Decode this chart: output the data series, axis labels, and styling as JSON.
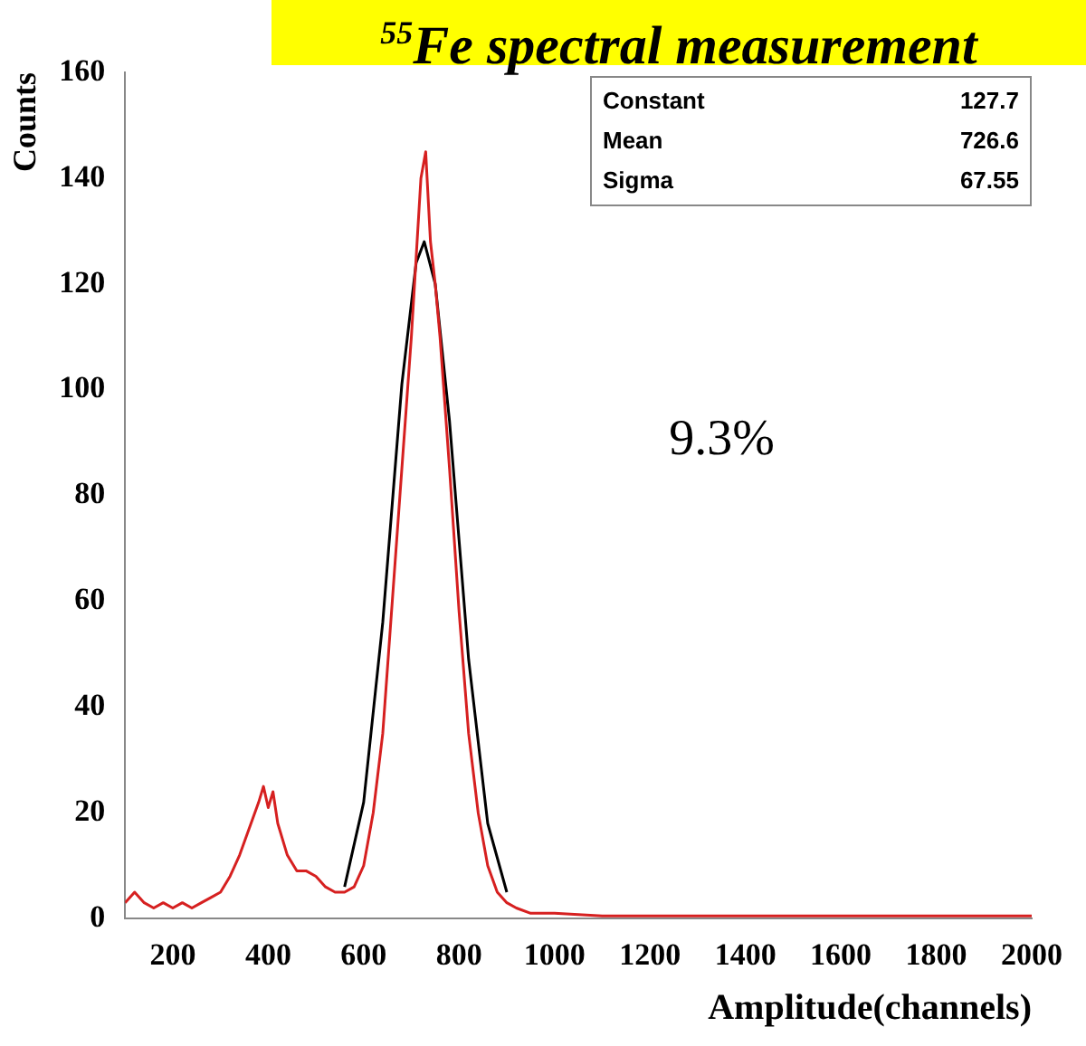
{
  "chart_data": {
    "type": "line",
    "title": "$^{55}$Fe spectral measurement",
    "xlabel": "Amplitude(channels)",
    "ylabel": "Counts",
    "annotations": [
      "Constant 127.7",
      "Mean 726.6",
      "Sigma 67.55",
      "9.3%"
    ],
    "series": [
      {
        "color": "#d62020",
        "x": [
          100,
          120,
          140,
          160,
          180,
          200,
          220,
          240,
          260,
          280,
          300,
          320,
          340,
          360,
          380,
          390,
          400,
          410,
          420,
          440,
          460,
          480,
          500,
          520,
          540,
          560,
          580,
          600,
          620,
          640,
          660,
          680,
          700,
          710,
          720,
          730,
          740,
          750,
          760,
          780,
          800,
          820,
          840,
          860,
          880,
          900,
          920,
          950,
          1000,
          1100,
          1200,
          1400,
          1600,
          1800,
          2000
        ],
        "values": [
          3,
          5,
          3,
          2,
          3,
          2,
          3,
          2,
          3,
          4,
          5,
          8,
          12,
          17,
          22,
          25,
          21,
          24,
          18,
          12,
          9,
          9,
          8,
          6,
          5,
          5,
          6,
          10,
          20,
          35,
          60,
          85,
          110,
          125,
          140,
          145,
          128,
          120,
          110,
          85,
          58,
          35,
          20,
          10,
          5,
          3,
          2,
          1,
          1,
          0.5,
          0.5,
          0.5,
          0.5,
          0.5,
          0.5
        ]
      },
      {
        "color": "#000000",
        "x": [
          560,
          600,
          640,
          680,
          710,
          727,
          750,
          780,
          820,
          860,
          900
        ],
        "values": [
          6,
          22,
          56,
          101,
          124,
          128,
          120,
          94,
          49,
          18,
          5
        ]
      }
    ],
    "xlim": [
      100,
      2000
    ],
    "xticks": [
      200,
      400,
      600,
      800,
      1000,
      1200,
      1400,
      1600,
      1800,
      2000
    ],
    "ylim": [
      0,
      160
    ],
    "yticks": [
      0,
      20,
      40,
      60,
      80,
      100,
      120,
      140,
      160
    ],
    "grid": false,
    "legend": false,
    "marker": "none",
    "line_style": "solid"
  }
}
